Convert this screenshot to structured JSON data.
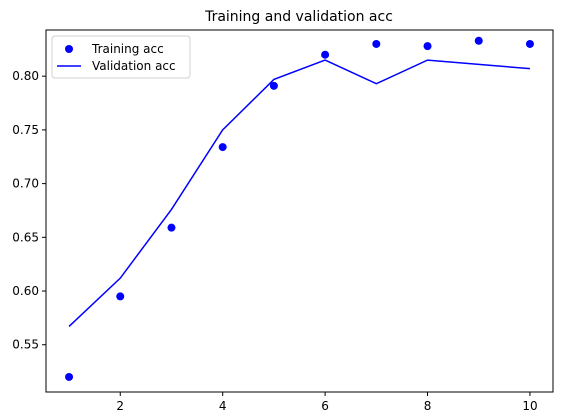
{
  "chart_data": {
    "type": "line",
    "title": "Training and validation acc",
    "xlabel": "",
    "ylabel": "",
    "xlim": [
      0.55,
      10.45
    ],
    "ylim": [
      0.506,
      0.843
    ],
    "xticks": [
      2,
      4,
      6,
      8,
      10
    ],
    "yticks": [
      0.55,
      0.6,
      0.65,
      0.7,
      0.75,
      0.8
    ],
    "grid": false,
    "legend_position": "upper-left",
    "series": [
      {
        "name": "Training acc",
        "style": "scatter",
        "color": "#0000ff",
        "x": [
          1,
          2,
          3,
          4,
          5,
          6,
          7,
          8,
          9,
          10
        ],
        "y": [
          0.52,
          0.595,
          0.659,
          0.734,
          0.791,
          0.82,
          0.83,
          0.828,
          0.833,
          0.83
        ]
      },
      {
        "name": "Validation acc",
        "style": "line",
        "color": "#0000ff",
        "x": [
          1,
          2,
          3,
          4,
          5,
          6,
          7,
          8,
          9,
          10
        ],
        "y": [
          0.567,
          0.612,
          0.676,
          0.75,
          0.797,
          0.815,
          0.793,
          0.815,
          0.811,
          0.807
        ]
      }
    ]
  }
}
